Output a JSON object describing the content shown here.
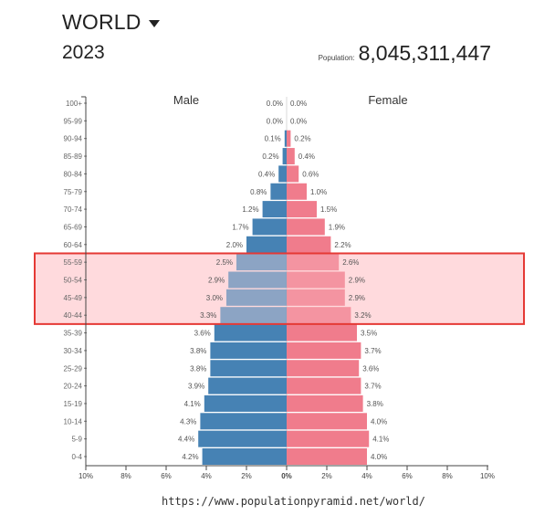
{
  "header": {
    "region": "WORLD",
    "year": "2023",
    "population_label": "Population:",
    "population_value": "8,045,311,447"
  },
  "chart_data": {
    "type": "bar",
    "orientation": "horizontal",
    "title": "",
    "left_label": "Male",
    "right_label": "Female",
    "categories": [
      "0-4",
      "5-9",
      "10-14",
      "15-19",
      "20-24",
      "25-29",
      "30-34",
      "35-39",
      "40-44",
      "45-49",
      "50-54",
      "55-59",
      "60-64",
      "65-69",
      "70-74",
      "75-79",
      "80-84",
      "85-89",
      "90-94",
      "95-99",
      "100+"
    ],
    "series": [
      {
        "name": "Male",
        "values": [
          4.2,
          4.4,
          4.3,
          4.1,
          3.9,
          3.8,
          3.8,
          3.6,
          3.3,
          3.0,
          2.9,
          2.5,
          2.0,
          1.7,
          1.2,
          0.8,
          0.4,
          0.2,
          0.1,
          0.0,
          0.0
        ],
        "labels": [
          "4.2%",
          "4.4%",
          "4.3%",
          "4.1%",
          "3.9%",
          "3.8%",
          "3.8%",
          "3.6%",
          "3.3%",
          "3.0%",
          "2.9%",
          "2.5%",
          "2.0%",
          "1.7%",
          "1.2%",
          "0.8%",
          "0.4%",
          "0.2%",
          "0.1%",
          "0.0%",
          "0.0%"
        ]
      },
      {
        "name": "Female",
        "values": [
          4.0,
          4.1,
          4.0,
          3.8,
          3.7,
          3.6,
          3.7,
          3.5,
          3.2,
          2.9,
          2.9,
          2.6,
          2.2,
          1.9,
          1.5,
          1.0,
          0.6,
          0.4,
          0.2,
          0.0,
          0.0
        ],
        "labels": [
          "4.0%",
          "4.1%",
          "4.0%",
          "3.8%",
          "3.7%",
          "3.6%",
          "3.7%",
          "3.5%",
          "3.2%",
          "2.9%",
          "2.9%",
          "2.6%",
          "2.2%",
          "1.9%",
          "1.5%",
          "1.0%",
          "0.6%",
          "0.4%",
          "0.2%",
          "0.0%",
          "0.0%"
        ]
      }
    ],
    "x_ticks": [
      "10%",
      "8%",
      "6%",
      "4%",
      "2%",
      "0%",
      "2%",
      "4%",
      "6%",
      "8%",
      "10%"
    ],
    "xlim": [
      -10,
      10
    ],
    "colors": {
      "male": "#4682B4",
      "female": "#F07C8C",
      "highlight_fill": "#FFDADD",
      "highlight_stroke": "#E53935"
    },
    "highlight": {
      "categories": [
        "40-44",
        "45-49",
        "50-54",
        "55-59"
      ]
    }
  },
  "caption": "https://www.populationpyramid.net/world/"
}
